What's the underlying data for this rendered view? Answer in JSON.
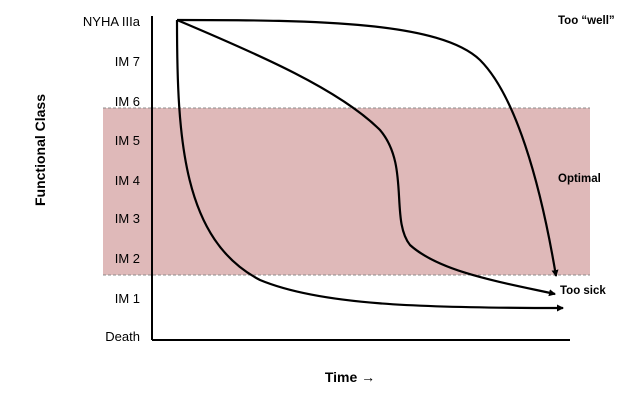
{
  "y_axis": {
    "title": "Functional Class",
    "levels": [
      "Death",
      "IM 1",
      "IM 2",
      "IM 3",
      "IM 4",
      "IM 5",
      "IM 6",
      "IM 7",
      "NYHA IIIa"
    ]
  },
  "x_axis": {
    "title": "Time →"
  },
  "zone": {
    "color": "#dfb9b9",
    "boundary_color": "#8c8c8c"
  },
  "annotations": {
    "too_well": "Too “well”",
    "optimal": "Optimal",
    "too_sick": "Too sick"
  },
  "curves": [
    {
      "name": "rapid-decline",
      "color": "#000000"
    },
    {
      "name": "s-curve-decline",
      "color": "#000000"
    },
    {
      "name": "late-decline",
      "color": "#000000"
    }
  ]
}
